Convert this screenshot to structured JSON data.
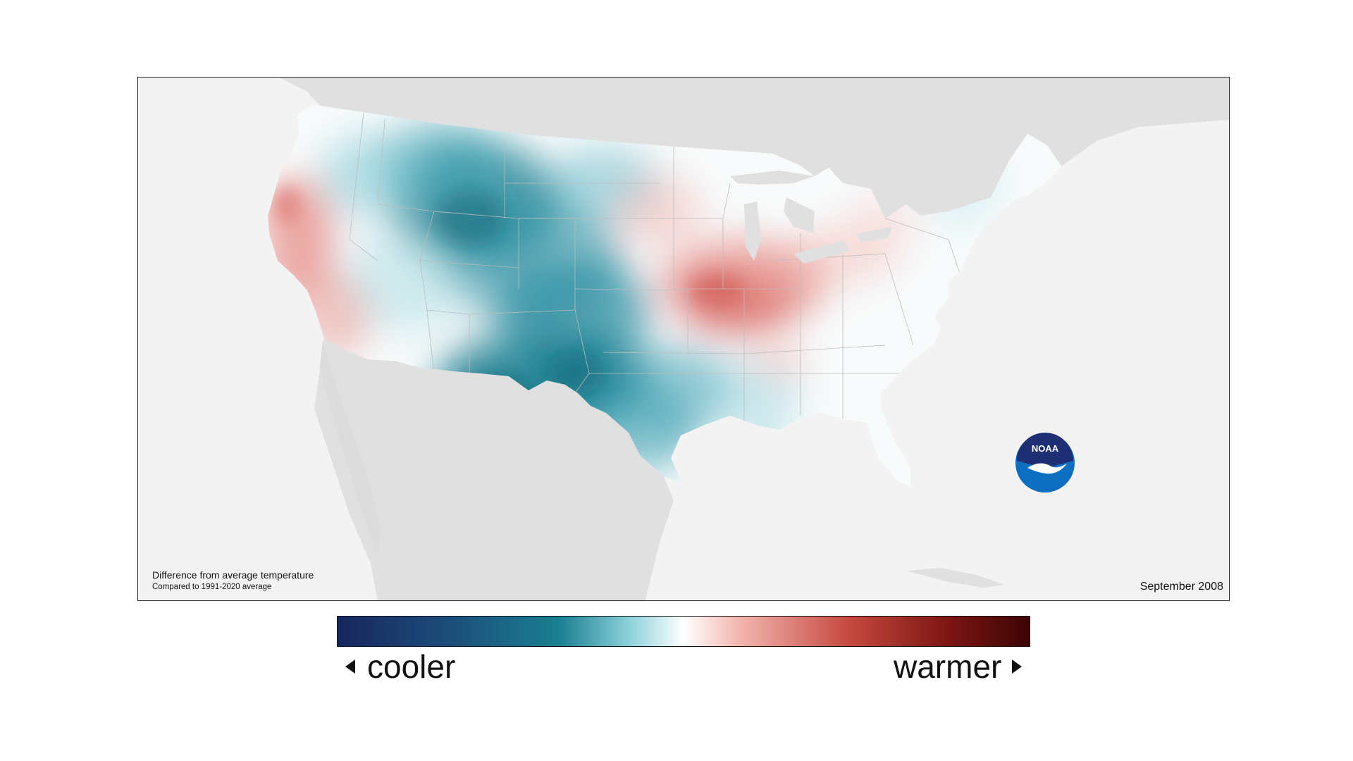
{
  "map": {
    "caption_title": "Difference from average temperature",
    "caption_subtitle": "Compared to 1991-2020 average",
    "date": "September 2008",
    "logo_text": "NOAA",
    "region": "Contiguous United States"
  },
  "legend": {
    "cooler_label": "cooler",
    "warmer_label": "warmer",
    "left_arrow_icon": "triangle-left-icon",
    "right_arrow_icon": "triangle-right-icon",
    "colors": [
      "#17265e",
      "#1a7f91",
      "#ffffff",
      "#c5483f",
      "#3d0405"
    ]
  },
  "colors": {
    "land_background": "#e0e0e0",
    "ocean": "#f3f3f3",
    "us_base": "#f8fbfc",
    "cool_anomaly": "#1a7f91",
    "warm_anomaly": "#e0605a",
    "noaa_blue": "#0e6fc0",
    "noaa_navy": "#1e2f74"
  }
}
